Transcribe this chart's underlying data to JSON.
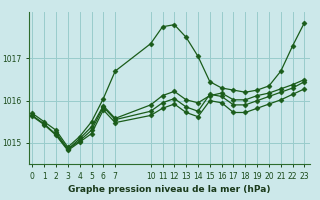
{
  "title": "Graphe pression niveau de la mer (hPa)",
  "bg_color": "#cce8ea",
  "grid_color": "#99cccc",
  "line_color": "#1a5c1a",
  "xticks_left": [
    0,
    1,
    2,
    3,
    4,
    5,
    6,
    7
  ],
  "xticks_right": [
    10,
    11,
    12,
    13,
    14,
    15,
    16,
    17,
    18,
    19,
    20,
    21,
    22,
    23
  ],
  "ylim": [
    1014.5,
    1018.1
  ],
  "yticks": [
    1015,
    1016,
    1017
  ],
  "series1": {
    "x": [
      0,
      1,
      2,
      3,
      4,
      5,
      6,
      7,
      10,
      11,
      12,
      13,
      14,
      15,
      16,
      17,
      18,
      19,
      20,
      21,
      22,
      23
    ],
    "y": [
      1015.7,
      1015.5,
      1015.3,
      1014.9,
      1015.15,
      1015.5,
      1016.05,
      1016.7,
      1017.35,
      1017.75,
      1017.8,
      1017.5,
      1017.05,
      1016.45,
      1016.3,
      1016.25,
      1016.2,
      1016.25,
      1016.35,
      1016.7,
      1017.3,
      1017.85
    ]
  },
  "series2": {
    "x": [
      0,
      1,
      2,
      3,
      4,
      5,
      6,
      7,
      10,
      11,
      12,
      13,
      14,
      15,
      16,
      17,
      18,
      19,
      20,
      21,
      22,
      23
    ],
    "y": [
      1015.65,
      1015.45,
      1015.2,
      1014.85,
      1015.05,
      1015.3,
      1015.85,
      1015.55,
      1015.75,
      1015.95,
      1016.05,
      1015.85,
      1015.75,
      1016.15,
      1016.1,
      1015.9,
      1015.9,
      1016.0,
      1016.1,
      1016.2,
      1016.3,
      1016.45
    ]
  },
  "series3": {
    "x": [
      0,
      1,
      2,
      3,
      4,
      5,
      6,
      7,
      10,
      11,
      12,
      13,
      14,
      15,
      16,
      17,
      18,
      19,
      20,
      21,
      22,
      23
    ],
    "y": [
      1015.63,
      1015.43,
      1015.18,
      1014.82,
      1015.02,
      1015.22,
      1015.78,
      1015.48,
      1015.65,
      1015.82,
      1015.92,
      1015.72,
      1015.62,
      1016.0,
      1015.95,
      1015.72,
      1015.72,
      1015.82,
      1015.92,
      1016.02,
      1016.15,
      1016.28
    ]
  },
  "series4": {
    "x": [
      2,
      3,
      4,
      5,
      6,
      7,
      10,
      11,
      12,
      13,
      14,
      15,
      16,
      17,
      18,
      19,
      20,
      21,
      22,
      23
    ],
    "y": [
      1015.25,
      1014.85,
      1015.1,
      1015.38,
      1015.88,
      1015.58,
      1015.9,
      1016.12,
      1016.22,
      1016.02,
      1015.95,
      1016.12,
      1016.18,
      1016.02,
      1016.02,
      1016.12,
      1016.18,
      1016.28,
      1016.38,
      1016.5
    ]
  },
  "marker": "D",
  "markersize": 2.5,
  "linewidth": 0.9,
  "tick_fontsize": 5.5,
  "label_fontsize": 6.5
}
